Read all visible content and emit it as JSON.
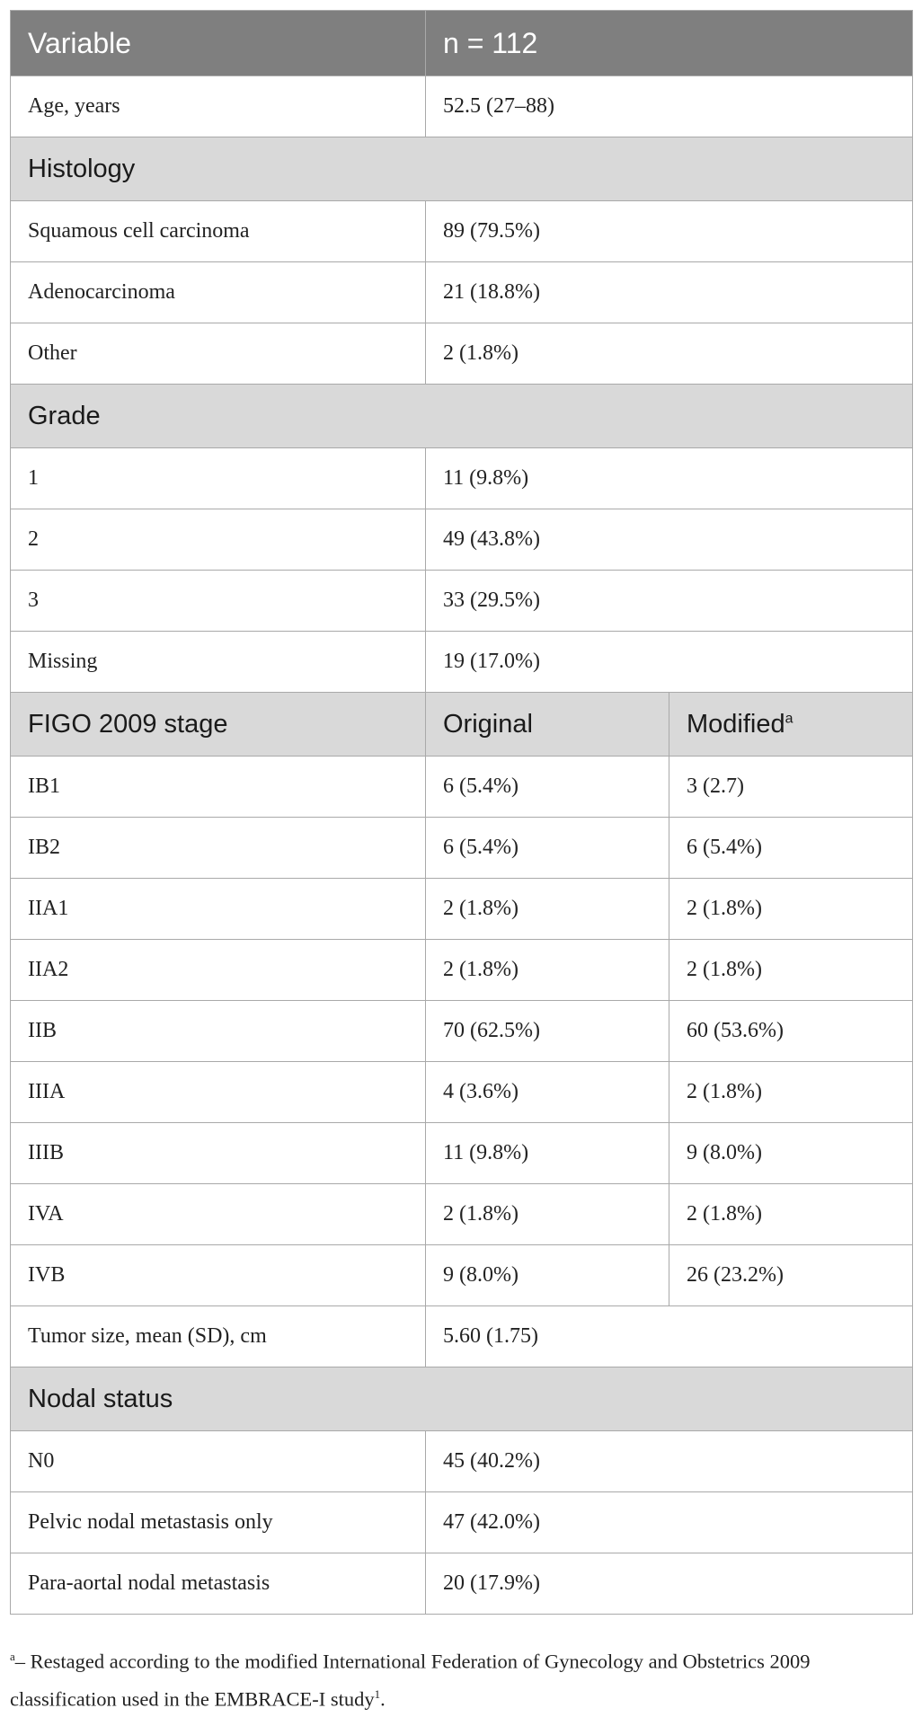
{
  "table": {
    "header": {
      "variable": "Variable",
      "n": "n = 112"
    },
    "age": {
      "label": "Age, years",
      "value": "52.5 (27–88)"
    },
    "histology": {
      "heading": "Histology",
      "rows": [
        {
          "label": "Squamous cell carcinoma",
          "value": "89 (79.5%)"
        },
        {
          "label": "Adenocarcinoma",
          "value": "21 (18.8%)"
        },
        {
          "label": "Other",
          "value": "2 (1.8%)"
        }
      ]
    },
    "grade": {
      "heading": "Grade",
      "rows": [
        {
          "label": "1",
          "value": "11 (9.8%)"
        },
        {
          "label": "2",
          "value": "49 (43.8%)"
        },
        {
          "label": "3",
          "value": "33 (29.5%)"
        },
        {
          "label": "Missing",
          "value": "19 (17.0%)"
        }
      ]
    },
    "stage": {
      "heading": "FIGO 2009 stage",
      "col_original": "Original",
      "col_modified": "Modified",
      "col_modified_sup": "a",
      "rows": [
        {
          "label": "IB1",
          "original": "6 (5.4%)",
          "modified": "3 (2.7)"
        },
        {
          "label": "IB2",
          "original": "6 (5.4%)",
          "modified": "6 (5.4%)"
        },
        {
          "label": "IIA1",
          "original": "2 (1.8%)",
          "modified": "2 (1.8%)"
        },
        {
          "label": "IIA2",
          "original": "2 (1.8%)",
          "modified": "2 (1.8%)"
        },
        {
          "label": "IIB",
          "original": "70 (62.5%)",
          "modified": "60 (53.6%)"
        },
        {
          "label": "IIIA",
          "original": "4 (3.6%)",
          "modified": "2 (1.8%)"
        },
        {
          "label": "IIIB",
          "original": "11 (9.8%)",
          "modified": "9 (8.0%)"
        },
        {
          "label": "IVA",
          "original": "2 (1.8%)",
          "modified": "2 (1.8%)"
        },
        {
          "label": "IVB",
          "original": "9 (8.0%)",
          "modified": "26 (23.2%)"
        }
      ]
    },
    "tumor_size": {
      "label": "Tumor size, mean (SD), cm",
      "value": "5.60 (1.75)"
    },
    "nodal": {
      "heading": "Nodal status",
      "rows": [
        {
          "label": "N0",
          "value": "45 (40.2%)"
        },
        {
          "label": "Pelvic nodal metastasis only",
          "value": "47 (42.0%)"
        },
        {
          "label": "Para-aortal nodal metastasis",
          "value": "20 (17.9%)"
        }
      ]
    }
  },
  "footnote": {
    "marker": "a",
    "text": "– Restaged according to the modified International Federation of Gynecology and Obstetrics 2009 classification used in the EMBRACE-I study",
    "ref": "1",
    "end": "."
  }
}
